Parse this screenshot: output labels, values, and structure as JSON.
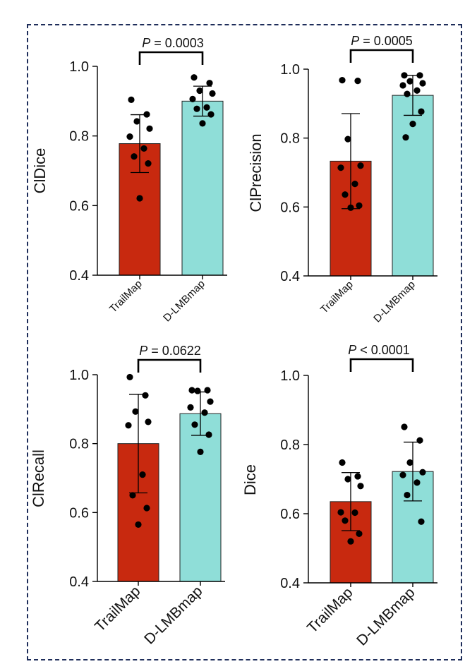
{
  "colors": {
    "frame": "#1e2d5a",
    "bar_1": "#c8290f",
    "bar_2": "#8fded8",
    "point": "#000000"
  },
  "chart_data": [
    {
      "type": "bar",
      "ylabel": "ClDice",
      "categories": [
        "TrailMap",
        "D-LMBmap"
      ],
      "values": [
        0.778,
        0.9
      ],
      "sd": [
        0.083,
        0.043
      ],
      "ylim": [
        0.4,
        1.0
      ],
      "yticks": [
        "0.4",
        "0.6",
        "0.8",
        "1.0"
      ],
      "points": [
        [
          0.904,
          0.862,
          0.842,
          0.821,
          0.798,
          0.764,
          0.741,
          0.721,
          0.621
        ],
        [
          0.968,
          0.952,
          0.93,
          0.922,
          0.906,
          0.882,
          0.878,
          0.862,
          0.836
        ]
      ],
      "p_prefix": "P",
      "p_text": " = 0.0003"
    },
    {
      "type": "bar",
      "ylabel": "ClPrecision",
      "categories": [
        "TrailMap",
        "D-LMBmap"
      ],
      "values": [
        0.733,
        0.924
      ],
      "sd": [
        0.138,
        0.058
      ],
      "ylim": [
        0.4,
        1.0
      ],
      "yticks": [
        "0.4",
        "0.6",
        "0.8",
        "1.0"
      ],
      "points": [
        [
          0.968,
          0.966,
          0.797,
          0.72,
          0.714,
          0.667,
          0.636,
          0.604,
          0.598
        ],
        [
          0.982,
          0.982,
          0.965,
          0.959,
          0.953,
          0.938,
          0.928,
          0.877,
          0.841,
          0.802
        ]
      ],
      "p_prefix": "P",
      "p_text": " = 0.0005"
    },
    {
      "type": "bar",
      "ylabel": "ClRecall",
      "categories": [
        "TrailMap",
        "D-LMBmap"
      ],
      "values": [
        0.8,
        0.887
      ],
      "sd": [
        0.143,
        0.063
      ],
      "ylim": [
        0.4,
        1.0
      ],
      "yticks": [
        "0.4",
        "0.6",
        "0.8",
        "1.0"
      ],
      "points": [
        [
          0.993,
          0.94,
          0.893,
          0.863,
          0.853,
          0.71,
          0.65,
          0.613,
          0.565
        ],
        [
          0.955,
          0.955,
          0.953,
          0.922,
          0.905,
          0.89,
          0.855,
          0.826,
          0.776
        ]
      ],
      "p_prefix": "P",
      "p_text": " = 0.0622"
    },
    {
      "type": "bar",
      "ylabel": "Dice",
      "categories": [
        "TrailMap",
        "D-LMBmap"
      ],
      "values": [
        0.635,
        0.722
      ],
      "sd": [
        0.084,
        0.085
      ],
      "ylim": [
        0.4,
        1.0
      ],
      "yticks": [
        "0.4",
        "0.6",
        "0.8",
        "1.0"
      ],
      "points": [
        [
          0.748,
          0.708,
          0.7,
          0.68,
          0.604,
          0.603,
          0.58,
          0.542,
          0.52
        ],
        [
          0.851,
          0.812,
          0.748,
          0.72,
          0.712,
          0.69,
          0.654,
          0.577
        ]
      ],
      "p_prefix": "P",
      "p_text": " < 0.0001"
    }
  ]
}
